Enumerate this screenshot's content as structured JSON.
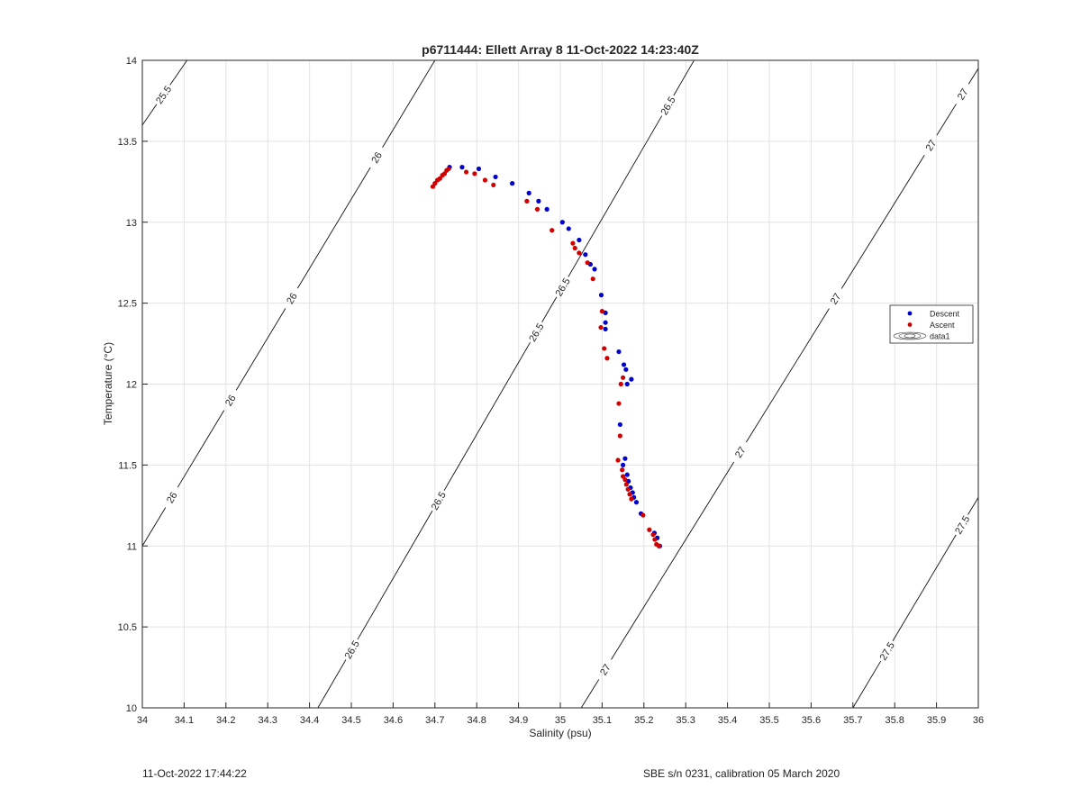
{
  "chart_data": {
    "type": "scatter",
    "title": "p6711444: Ellett Array 8 11-Oct-2022 14:23:40Z",
    "xlabel": "Salinity (psu)",
    "ylabel": "Temperature (°C)",
    "xlim": [
      34,
      36
    ],
    "ylim": [
      10,
      14
    ],
    "xticks": [
      "34",
      "34.1",
      "34.2",
      "34.3",
      "34.4",
      "34.5",
      "34.6",
      "34.7",
      "34.8",
      "34.9",
      "35",
      "35.1",
      "35.2",
      "35.3",
      "35.4",
      "35.5",
      "35.6",
      "35.7",
      "35.8",
      "35.9",
      "36"
    ],
    "yticks": [
      "10",
      "10.5",
      "11",
      "11.5",
      "12",
      "12.5",
      "13",
      "13.5",
      "14"
    ],
    "grid": true,
    "legend_position": "right",
    "series": [
      {
        "name": "Descent",
        "color": "#0000cc",
        "marker": "dot",
        "points": [
          [
            34.735,
            13.34
          ],
          [
            34.765,
            13.34
          ],
          [
            34.805,
            13.33
          ],
          [
            34.845,
            13.28
          ],
          [
            34.885,
            13.24
          ],
          [
            34.925,
            13.18
          ],
          [
            34.948,
            13.13
          ],
          [
            34.968,
            13.08
          ],
          [
            35.005,
            13.0
          ],
          [
            35.02,
            12.96
          ],
          [
            35.045,
            12.89
          ],
          [
            35.06,
            12.8
          ],
          [
            35.072,
            12.74
          ],
          [
            35.082,
            12.71
          ],
          [
            35.098,
            12.55
          ],
          [
            35.108,
            12.44
          ],
          [
            35.108,
            12.38
          ],
          [
            35.108,
            12.34
          ],
          [
            35.14,
            12.2
          ],
          [
            35.152,
            12.12
          ],
          [
            35.157,
            12.09
          ],
          [
            35.16,
            12.0
          ],
          [
            35.17,
            12.03
          ],
          [
            35.143,
            11.75
          ],
          [
            35.15,
            11.5
          ],
          [
            35.155,
            11.54
          ],
          [
            35.16,
            11.44
          ],
          [
            35.163,
            11.4
          ],
          [
            35.168,
            11.36
          ],
          [
            35.173,
            11.33
          ],
          [
            35.176,
            11.3
          ],
          [
            35.182,
            11.27
          ],
          [
            35.193,
            11.2
          ],
          [
            35.225,
            11.08
          ],
          [
            35.232,
            11.05
          ],
          [
            35.238,
            11.0
          ]
        ]
      },
      {
        "name": "Ascent",
        "color": "#d00000",
        "marker": "dot",
        "points": [
          [
            34.695,
            13.22
          ],
          [
            34.7,
            13.24
          ],
          [
            34.706,
            13.26
          ],
          [
            34.712,
            13.27
          ],
          [
            34.718,
            13.29
          ],
          [
            34.723,
            13.3
          ],
          [
            34.728,
            13.32
          ],
          [
            34.733,
            13.33
          ],
          [
            34.775,
            13.31
          ],
          [
            34.795,
            13.3
          ],
          [
            34.82,
            13.26
          ],
          [
            34.84,
            13.23
          ],
          [
            34.92,
            13.13
          ],
          [
            34.945,
            13.08
          ],
          [
            34.98,
            12.95
          ],
          [
            35.03,
            12.87
          ],
          [
            35.035,
            12.84
          ],
          [
            35.045,
            12.81
          ],
          [
            35.065,
            12.75
          ],
          [
            35.078,
            12.65
          ],
          [
            35.1,
            12.45
          ],
          [
            35.097,
            12.35
          ],
          [
            35.105,
            12.22
          ],
          [
            35.112,
            12.16
          ],
          [
            35.145,
            12.0
          ],
          [
            35.15,
            12.04
          ],
          [
            35.14,
            11.88
          ],
          [
            35.143,
            11.68
          ],
          [
            35.138,
            11.53
          ],
          [
            35.148,
            11.47
          ],
          [
            35.15,
            11.43
          ],
          [
            35.155,
            11.41
          ],
          [
            35.158,
            11.38
          ],
          [
            35.162,
            11.35
          ],
          [
            35.166,
            11.32
          ],
          [
            35.17,
            11.29
          ],
          [
            35.198,
            11.19
          ],
          [
            35.213,
            11.1
          ],
          [
            35.222,
            11.07
          ],
          [
            35.226,
            11.04
          ],
          [
            35.23,
            11.01
          ],
          [
            35.236,
            11.0
          ]
        ]
      }
    ],
    "contours": [
      {
        "label": "25.5",
        "p1": [
          34,
          13.6
        ],
        "p2": [
          34.107,
          14
        ],
        "labels_at": [
          0.47
        ]
      },
      {
        "label": "26",
        "p1": [
          34,
          11.0
        ],
        "p2": [
          34.7,
          14
        ],
        "labels_at": [
          0.1,
          0.3,
          0.51,
          0.8
        ]
      },
      {
        "label": "26.5",
        "p1": [
          34.42,
          10
        ],
        "p2": [
          35.32,
          14
        ],
        "labels_at": [
          0.09,
          0.32,
          0.58,
          0.65,
          0.93
        ]
      },
      {
        "label": "27",
        "p1": [
          35.05,
          10
        ],
        "p2": [
          36,
          13.95
        ],
        "labels_at": [
          0.06,
          0.4,
          0.64,
          0.88,
          0.96
        ]
      },
      {
        "label": "27.5",
        "p1": [
          35.7,
          10
        ],
        "p2": [
          36,
          11.3
        ],
        "labels_at": [
          0.27,
          0.87
        ]
      }
    ],
    "legend_entries": [
      "Descent",
      "Ascent",
      "data1"
    ]
  },
  "footer": {
    "left": "11-Oct-2022 17:44:22",
    "right": "SBE s/n 0231, calibration 05 March 2020"
  }
}
